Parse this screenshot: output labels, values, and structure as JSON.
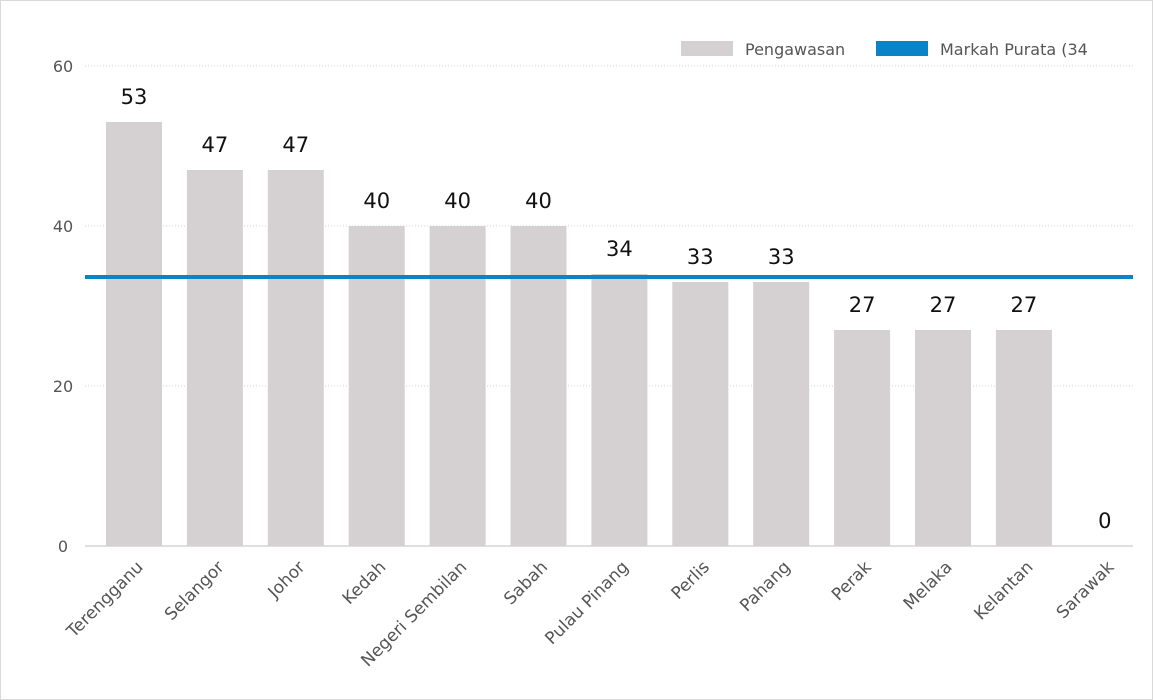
{
  "chart_data": {
    "type": "bar",
    "title": "",
    "xlabel": "",
    "ylabel": "",
    "ylim": [
      0,
      60
    ],
    "yticks": [
      0,
      20,
      40,
      60
    ],
    "grid": true,
    "legend_position": "top-right",
    "categories": [
      "Terengganu",
      "Selangor",
      "Johor",
      "Kedah",
      "Negeri Sembilan",
      "Sabah",
      "Pulau Pinang",
      "Perlis",
      "Pahang",
      "Perak",
      "Melaka",
      "Kelantan",
      "Sarawak"
    ],
    "series": [
      {
        "name": "Pengawasan",
        "type": "bar",
        "color": "#d5d0d1",
        "values": [
          53,
          47,
          47,
          40,
          40,
          40,
          34,
          33,
          33,
          27,
          27,
          27,
          0
        ],
        "labels": [
          "53",
          "47",
          "47",
          "40",
          "40",
          "40",
          "34",
          "33",
          "33",
          "27",
          "27",
          "27",
          "0"
        ]
      },
      {
        "name": "Markah Purata (34",
        "type": "line",
        "color": "#0a84c6",
        "value": 34
      }
    ]
  }
}
